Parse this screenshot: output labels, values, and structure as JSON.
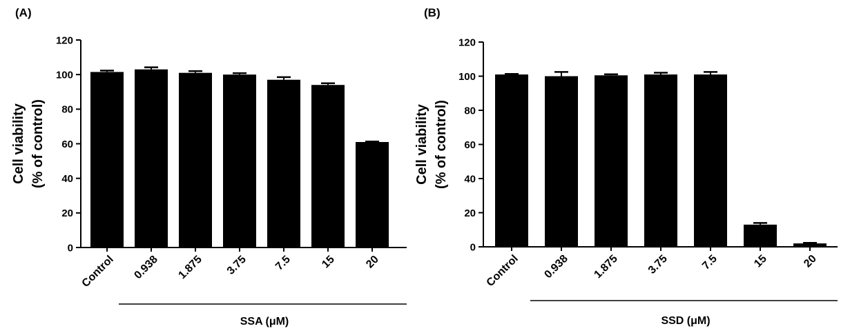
{
  "chart_data": [
    {
      "panel_label": "(A)",
      "type": "bar",
      "title": "",
      "ylabel_line1": "Cell viability",
      "ylabel_line2": "(% of control)",
      "xlabel": "SSA (μM)",
      "ylim": [
        0,
        120
      ],
      "yticks": [
        0,
        20,
        40,
        60,
        80,
        100,
        120
      ],
      "categories": [
        "Control",
        "0.938",
        "1.875",
        "3.75",
        "7.5",
        "15",
        "20"
      ],
      "values": [
        101.5,
        103,
        101,
        100,
        97,
        94,
        61
      ],
      "errors": [
        0.8,
        1.2,
        1.0,
        0.8,
        1.5,
        1.0,
        0.3
      ],
      "bar_color": "#000000",
      "treatment_group_start_index": 1
    },
    {
      "panel_label": "(B)",
      "type": "bar",
      "title": "",
      "ylabel_line1": "Cell viability",
      "ylabel_line2": "(% of control)",
      "xlabel": "SSD (μM)",
      "ylim": [
        0,
        120
      ],
      "yticks": [
        0,
        20,
        40,
        60,
        80,
        100,
        120
      ],
      "categories": [
        "Control",
        "0.938",
        "1.875",
        "3.75",
        "7.5",
        "15",
        "20"
      ],
      "values": [
        101,
        100,
        100.5,
        101,
        101,
        13,
        2
      ],
      "errors": [
        0.3,
        2.5,
        0.6,
        1.0,
        1.5,
        1.0,
        0.3
      ],
      "bar_color": "#000000",
      "treatment_group_start_index": 1
    }
  ]
}
